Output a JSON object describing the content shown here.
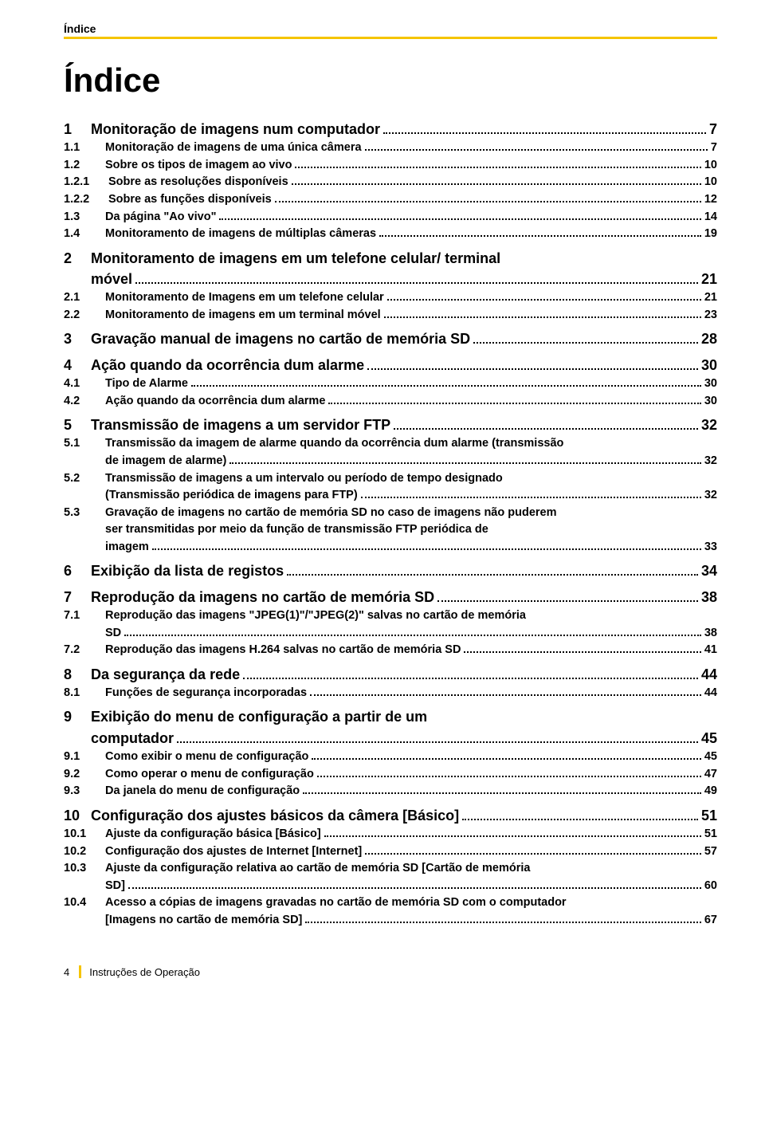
{
  "colors": {
    "accent": "#f5c400",
    "text": "#000000",
    "bg": "#ffffff"
  },
  "fonts": {
    "family": "Arial",
    "title_pt": 42,
    "lvl1_pt": 18,
    "lvl2_pt": 14.5
  },
  "header_label": "Índice",
  "title": "Índice",
  "footer": {
    "page_number": "4",
    "manual_label": "Instruções de Operação"
  },
  "toc": [
    {
      "lvl": 1,
      "num": "1",
      "text": "Monitoração de imagens num computador",
      "page": "7"
    },
    {
      "lvl": 2,
      "num": "1.1",
      "text": "Monitoração de imagens de uma única câmera",
      "page": "7"
    },
    {
      "lvl": 2,
      "num": "1.2",
      "text": "Sobre os tipos de imagem ao vivo",
      "page": "10"
    },
    {
      "lvl": 3,
      "num": "1.2.1",
      "text": "Sobre as resoluções disponíveis",
      "page": "10"
    },
    {
      "lvl": 3,
      "num": "1.2.2",
      "text": "Sobre as funções disponíveis",
      "page": "12"
    },
    {
      "lvl": 2,
      "num": "1.3",
      "text": "Da página \"Ao vivo\"",
      "page": "14"
    },
    {
      "lvl": 2,
      "num": "1.4",
      "text": "Monitoramento de imagens de múltiplas câmeras",
      "page": "19"
    },
    {
      "lvl": 1,
      "num": "2",
      "text": "Monitoramento de imagens em um telefone celular/ terminal",
      "cont": "móvel",
      "page": "21"
    },
    {
      "lvl": 2,
      "num": "2.1",
      "text": "Monitoramento de Imagens em um telefone celular",
      "page": "21"
    },
    {
      "lvl": 2,
      "num": "2.2",
      "text": "Monitoramento de imagens em um terminal móvel",
      "page": "23"
    },
    {
      "lvl": 1,
      "num": "3",
      "text": "Gravação manual de imagens no cartão de memória SD",
      "page": "28"
    },
    {
      "lvl": 1,
      "num": "4",
      "text": "Ação quando da ocorrência dum alarme",
      "page": "30"
    },
    {
      "lvl": 2,
      "num": "4.1",
      "text": "Tipo de Alarme",
      "page": "30"
    },
    {
      "lvl": 2,
      "num": "4.2",
      "text": "Ação quando da ocorrência dum alarme",
      "page": "30"
    },
    {
      "lvl": 1,
      "num": "5",
      "text": "Transmissão de imagens a um servidor FTP",
      "page": "32"
    },
    {
      "lvl": 2,
      "num": "5.1",
      "text": "Transmissão da imagem de alarme quando da ocorrência dum alarme (transmissão",
      "cont": "de imagem de alarme)",
      "page": "32"
    },
    {
      "lvl": 2,
      "num": "5.2",
      "text": "Transmissão de imagens a um intervalo ou período de tempo designado",
      "cont": "(Transmissão periódica de imagens para FTP)",
      "page": "32"
    },
    {
      "lvl": 2,
      "num": "5.3",
      "text": "Gravação de imagens no cartão de memória SD no caso de imagens não puderem",
      "cont": "ser transmitidas por meio da função de transmissão FTP periódica de",
      "cont2": "imagem",
      "page": "33"
    },
    {
      "lvl": 1,
      "num": "6",
      "text": "Exibição da lista de registos",
      "page": "34"
    },
    {
      "lvl": 1,
      "num": "7",
      "text": "Reprodução da imagens no cartão de memória SD",
      "page": "38"
    },
    {
      "lvl": 2,
      "num": "7.1",
      "text": "Reprodução das imagens \"JPEG(1)\"/\"JPEG(2)\" salvas no cartão de memória",
      "cont": "SD",
      "page": "38"
    },
    {
      "lvl": 2,
      "num": "7.2",
      "text": "Reprodução das imagens H.264 salvas no cartão de memória SD",
      "page": "41"
    },
    {
      "lvl": 1,
      "num": "8",
      "text": "Da segurança da rede",
      "page": "44"
    },
    {
      "lvl": 2,
      "num": "8.1",
      "text": "Funções de segurança incorporadas",
      "page": "44"
    },
    {
      "lvl": 1,
      "num": "9",
      "text": "Exibição do menu de configuração a partir de um",
      "cont": "computador",
      "page": "45"
    },
    {
      "lvl": 2,
      "num": "9.1",
      "text": "Como exibir o menu de configuração",
      "page": "45"
    },
    {
      "lvl": 2,
      "num": "9.2",
      "text": "Como operar o menu de configuração",
      "page": "47"
    },
    {
      "lvl": 2,
      "num": "9.3",
      "text": "Da janela do menu de configuração",
      "page": "49"
    },
    {
      "lvl": 1,
      "num": "10",
      "text": "Configuração dos ajustes básicos da câmera [Básico]",
      "page": "51"
    },
    {
      "lvl": 2,
      "num": "10.1",
      "text": "Ajuste da configuração básica [Básico]",
      "page": "51"
    },
    {
      "lvl": 2,
      "num": "10.2",
      "text": "Configuração dos ajustes de Internet [Internet]",
      "page": "57"
    },
    {
      "lvl": 2,
      "num": "10.3",
      "text": "Ajuste da configuração relativa ao cartão de memória SD [Cartão de memória",
      "cont": "SD]",
      "page": "60"
    },
    {
      "lvl": 2,
      "num": "10.4",
      "text": "Acesso a cópias de imagens gravadas no cartão de memória SD com o computador",
      "cont": "[Imagens no cartão de memória SD]",
      "page": "67"
    }
  ]
}
